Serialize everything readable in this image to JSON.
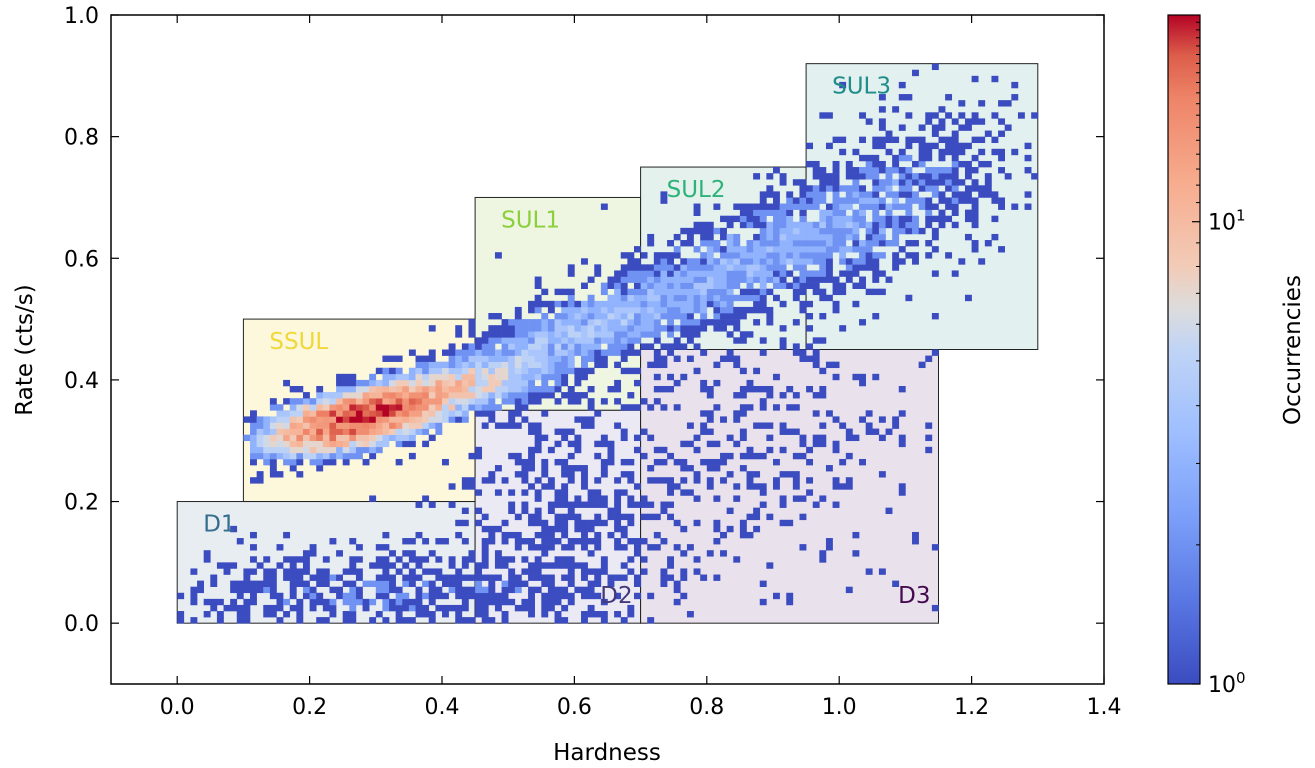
{
  "chart_data": {
    "type": "heatmap",
    "title": "",
    "xlabel": "Hardness",
    "ylabel": "Rate (cts/s)",
    "xlim": [
      -0.1,
      1.4
    ],
    "ylim": [
      -0.1,
      1.0
    ],
    "x_ticks": [
      0.0,
      0.2,
      0.4,
      0.6,
      0.8,
      1.0,
      1.2,
      1.4
    ],
    "x_tick_labels": [
      "0.0",
      "0.2",
      "0.4",
      "0.6",
      "0.8",
      "1.0",
      "1.2",
      "1.4"
    ],
    "y_ticks": [
      0.0,
      0.2,
      0.4,
      0.6,
      0.8,
      1.0
    ],
    "y_tick_labels": [
      "0.0",
      "0.2",
      "0.4",
      "0.6",
      "0.8",
      "1.0"
    ],
    "tick_direction": "in",
    "grid": false,
    "colormap": "coolwarm",
    "colorbar": {
      "label": "Occurrencies",
      "scale": "log",
      "range": [
        1,
        28
      ],
      "major_ticks": [
        {
          "value": 1,
          "base": "10",
          "exp": "0"
        },
        {
          "value": 10,
          "base": "10",
          "exp": "1"
        }
      ]
    },
    "regions": [
      {
        "name": "SSUL",
        "x": [
          0.1,
          0.45
        ],
        "y": [
          0.2,
          0.5
        ],
        "color": "#fdf8dc",
        "label_color": "#f0d83a"
      },
      {
        "name": "SUL1",
        "x": [
          0.45,
          0.7
        ],
        "y": [
          0.35,
          0.7
        ],
        "color": "#eef6e2",
        "label_color": "#8bcf3c"
      },
      {
        "name": "SUL2",
        "x": [
          0.7,
          0.95
        ],
        "y": [
          0.45,
          0.75
        ],
        "color": "#e4f1ec",
        "label_color": "#2db37a"
      },
      {
        "name": "SUL3",
        "x": [
          0.95,
          1.3
        ],
        "y": [
          0.45,
          0.92
        ],
        "color": "#e3f0f0",
        "label_color": "#1f8d8a"
      },
      {
        "name": "D1",
        "x": [
          0.0,
          0.45
        ],
        "y": [
          0.0,
          0.2
        ],
        "color": "#e8edf2",
        "label_color": "#346d8d"
      },
      {
        "name": "D2",
        "x": [
          0.45,
          0.7
        ],
        "y": [
          0.0,
          0.35
        ],
        "color": "#ebe9f3",
        "label_color": "#45387d"
      },
      {
        "name": "D3",
        "x": [
          0.7,
          1.15
        ],
        "y": [
          0.0,
          0.45
        ],
        "color": "#e9e2ec",
        "label_color": "#440a4f"
      }
    ],
    "density_components": [
      {
        "cx": 0.27,
        "cy": 0.335,
        "sx": 0.075,
        "sy": 0.03,
        "rho": 0.55,
        "peak": 26
      },
      {
        "cx": 0.42,
        "cy": 0.39,
        "sx": 0.08,
        "sy": 0.03,
        "rho": 0.5,
        "peak": 7
      },
      {
        "cx": 0.6,
        "cy": 0.48,
        "sx": 0.1,
        "sy": 0.045,
        "rho": 0.6,
        "peak": 3.2
      },
      {
        "cx": 0.85,
        "cy": 0.59,
        "sx": 0.14,
        "sy": 0.075,
        "rho": 0.7,
        "peak": 2.6
      },
      {
        "cx": 1.08,
        "cy": 0.7,
        "sx": 0.12,
        "sy": 0.09,
        "rho": 0.5,
        "peak": 1.5
      },
      {
        "cx": 0.27,
        "cy": 0.045,
        "sx": 0.22,
        "sy": 0.045,
        "rho": 0.0,
        "peak": 1.4
      },
      {
        "cx": 0.58,
        "cy": 0.18,
        "sx": 0.1,
        "sy": 0.12,
        "rho": 0.0,
        "peak": 0.9
      },
      {
        "cx": 0.85,
        "cy": 0.28,
        "sx": 0.15,
        "sy": 0.12,
        "rho": 0.0,
        "peak": 0.6
      }
    ]
  }
}
